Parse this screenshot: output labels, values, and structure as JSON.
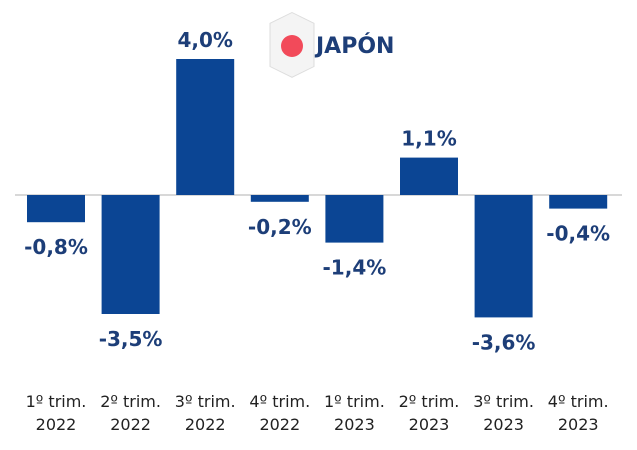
{
  "chart_data": {
    "type": "bar",
    "title": "JAPÓN",
    "categories": [
      "1º trim. 2022",
      "2º trim. 2022",
      "3º trim. 2022",
      "4º trim. 2022",
      "1º trim. 2023",
      "2º trim. 2023",
      "3º trim. 2023",
      "4º trim. 2023"
    ],
    "values": [
      -0.8,
      -3.5,
      4.0,
      -0.2,
      -1.4,
      1.1,
      -3.6,
      -0.4
    ],
    "value_labels": [
      "-0,8%",
      "-3,5%",
      "4,0%",
      "-0,2%",
      "-1,4%",
      "1,1%",
      "-3,6%",
      "-0,4%"
    ],
    "color": "#0b4594"
  }
}
